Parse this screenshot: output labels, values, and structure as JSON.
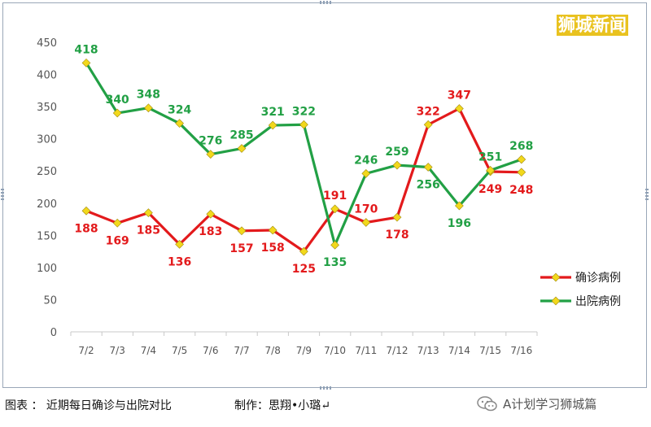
{
  "watermark": "狮城新闻",
  "caption": "图表 ： 近期每日确诊与出院对比",
  "credit": "制作：思翔•小璐↵",
  "wechat_account": "A计划学习狮城篇",
  "colors": {
    "confirmed": "#e31a1c",
    "discharged": "#22a045",
    "marker": "#f2d81c",
    "watermark_bg": "#e9c21f"
  },
  "chart_data": {
    "type": "line",
    "categories": [
      "7/2",
      "7/3",
      "7/4",
      "7/5",
      "7/6",
      "7/7",
      "7/8",
      "7/9",
      "7/10",
      "7/11",
      "7/12",
      "7/13",
      "7/14",
      "7/15",
      "7/16"
    ],
    "ylim": [
      0,
      450
    ],
    "yticks": [
      0,
      50,
      100,
      150,
      200,
      250,
      300,
      350,
      400,
      450
    ],
    "grid": false,
    "legend_position": "right",
    "series": [
      {
        "name": "确诊病例",
        "color": "#e31a1c",
        "values": [
          188,
          169,
          185,
          136,
          183,
          157,
          158,
          125,
          191,
          170,
          178,
          322,
          347,
          249,
          248
        ]
      },
      {
        "name": "出院病例",
        "color": "#22a045",
        "values": [
          418,
          340,
          348,
          324,
          276,
          285,
          321,
          322,
          135,
          246,
          259,
          256,
          196,
          251,
          268
        ]
      }
    ]
  }
}
